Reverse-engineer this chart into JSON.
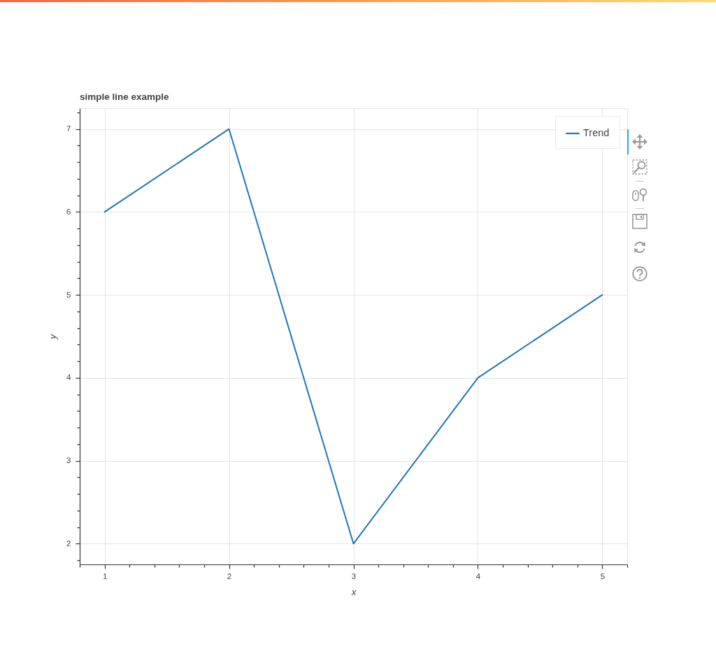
{
  "chart_data": {
    "type": "line",
    "title": "simple line example",
    "xlabel": "x",
    "ylabel": "y",
    "x": [
      1,
      2,
      3,
      4,
      5
    ],
    "series": [
      {
        "name": "Trend",
        "color": "#1f77b4",
        "values": [
          6,
          7,
          2,
          4,
          5
        ]
      }
    ],
    "xlim": [
      0.8,
      5.2
    ],
    "ylim": [
      1.75,
      7.25
    ],
    "xticks": [
      {
        "value": 0.8,
        "label": null
      },
      1,
      {
        "value": 1.2,
        "label": null
      },
      {
        "value": 1.4,
        "label": null
      },
      {
        "value": 1.6,
        "label": null
      },
      {
        "value": 1.8,
        "label": null
      },
      2,
      {
        "value": 2.2,
        "label": null
      },
      {
        "value": 2.4,
        "label": null
      },
      {
        "value": 2.6,
        "label": null
      },
      {
        "value": 2.8,
        "label": null
      },
      3,
      {
        "value": 3.2,
        "label": null
      },
      {
        "value": 3.4,
        "label": null
      },
      {
        "value": 3.6,
        "label": null
      },
      {
        "value": 3.8,
        "label": null
      },
      4,
      {
        "value": 4.2,
        "label": null
      },
      {
        "value": 4.4,
        "label": null
      },
      {
        "value": 4.6,
        "label": null
      },
      {
        "value": 4.8,
        "label": null
      },
      5,
      {
        "value": 5.2,
        "label": null
      }
    ],
    "yticks": [
      {
        "value": 1.8,
        "label": null
      },
      2,
      {
        "value": 2.2,
        "label": null
      },
      {
        "value": 2.4,
        "label": null
      },
      {
        "value": 2.6,
        "label": null
      },
      {
        "value": 2.8,
        "label": null
      },
      3,
      {
        "value": 3.2,
        "label": null
      },
      {
        "value": 3.4,
        "label": null
      },
      {
        "value": 3.6,
        "label": null
      },
      {
        "value": 3.8,
        "label": null
      },
      4,
      {
        "value": 4.2,
        "label": null
      },
      {
        "value": 4.4,
        "label": null
      },
      {
        "value": 4.6,
        "label": null
      },
      {
        "value": 4.8,
        "label": null
      },
      5,
      {
        "value": 5.2,
        "label": null
      },
      {
        "value": 5.4,
        "label": null
      },
      {
        "value": 5.6,
        "label": null
      },
      {
        "value": 5.8,
        "label": null
      },
      6,
      {
        "value": 6.2,
        "label": null
      },
      {
        "value": 6.4,
        "label": null
      },
      {
        "value": 6.6,
        "label": null
      },
      {
        "value": 6.8,
        "label": null
      },
      7,
      {
        "value": 7.2,
        "label": null
      }
    ],
    "grid": true,
    "legend": "top right"
  }
}
